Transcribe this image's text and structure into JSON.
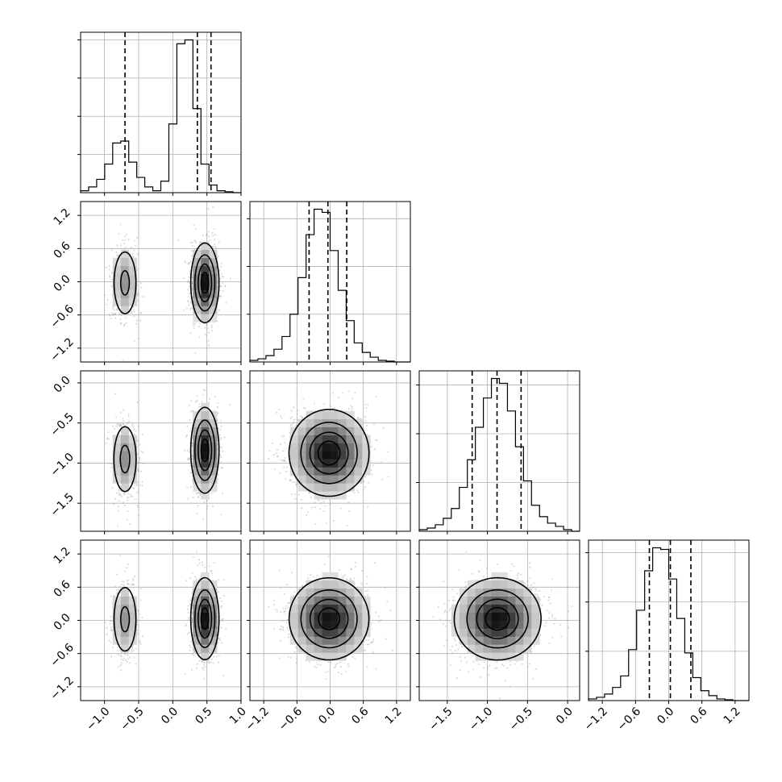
{
  "chart_data": {
    "type": "corner",
    "parameters": [
      {
        "range": [
          -1.35,
          1.0
        ],
        "ticks": [
          -1.0,
          -0.5,
          0.0,
          0.5,
          1.0
        ],
        "tick_labels": [
          "−1.0",
          "−0.5",
          "0.0",
          "0.5",
          "1.0"
        ]
      },
      {
        "range": [
          -1.45,
          1.45
        ],
        "ticks": [
          -1.2,
          -0.6,
          0.0,
          0.6,
          1.2
        ],
        "tick_labels": [
          "−1.2",
          "−0.6",
          "0.0",
          "0.6",
          "1.2"
        ]
      },
      {
        "range": [
          -1.85,
          0.15
        ],
        "ticks": [
          -1.5,
          -1.0,
          -0.5,
          0.0
        ],
        "tick_labels": [
          "−1.5",
          "−1.0",
          "−0.5",
          "0.0"
        ]
      },
      {
        "range": [
          -1.45,
          1.45
        ],
        "ticks": [
          -1.2,
          -0.6,
          0.0,
          0.6,
          1.2
        ],
        "tick_labels": [
          "−1.2",
          "−0.6",
          "0.0",
          "0.6",
          "1.2"
        ]
      }
    ],
    "quantiles": [
      [
        -0.7,
        0.36,
        0.56
      ],
      [
        -0.38,
        -0.04,
        0.3
      ],
      [
        -1.19,
        -0.88,
        -0.58
      ],
      [
        -0.35,
        0.03,
        0.4
      ]
    ],
    "histograms": [
      {
        "edges_start": -1.35,
        "bin_width": 0.1175,
        "counts": [
          1,
          3,
          7,
          15,
          26,
          27,
          16,
          8,
          3,
          1,
          6,
          36,
          78,
          80,
          44,
          15,
          4,
          1,
          0.5,
          0
        ]
      },
      {
        "edges_start": -1.45,
        "bin_width": 0.145,
        "counts": [
          1,
          2,
          4,
          8,
          16,
          30,
          53,
          80,
          96,
          94,
          70,
          45,
          26,
          12,
          6,
          3,
          1,
          0.5,
          0,
          0
        ]
      },
      {
        "edges_start": -1.85,
        "bin_width": 0.1,
        "counts": [
          1,
          2,
          4,
          8,
          14,
          27,
          44,
          64,
          82,
          94,
          91,
          74,
          52,
          31,
          16,
          9,
          5,
          3,
          1,
          0
        ]
      },
      {
        "edges_start": -1.45,
        "bin_width": 0.145,
        "counts": [
          1,
          2,
          4,
          8,
          15,
          31,
          55,
          79,
          93,
          92,
          74,
          50,
          29,
          14,
          6,
          3,
          1,
          0.5,
          0,
          0
        ]
      }
    ],
    "components": [
      {
        "weight": 0.3,
        "mean": [
          -0.7,
          -0.02,
          -0.95,
          0.02
        ],
        "sd": [
          0.1,
          0.35,
          0.25,
          0.36
        ]
      },
      {
        "weight": 0.7,
        "mean": [
          0.47,
          -0.02,
          -0.84,
          0.03
        ],
        "sd": [
          0.1,
          0.35,
          0.26,
          0.36
        ]
      }
    ],
    "contour_levels": [
      0.12,
      0.35,
      0.62,
      0.86
    ],
    "grid": true,
    "title": "",
    "xlabel": "",
    "ylabel": ""
  }
}
